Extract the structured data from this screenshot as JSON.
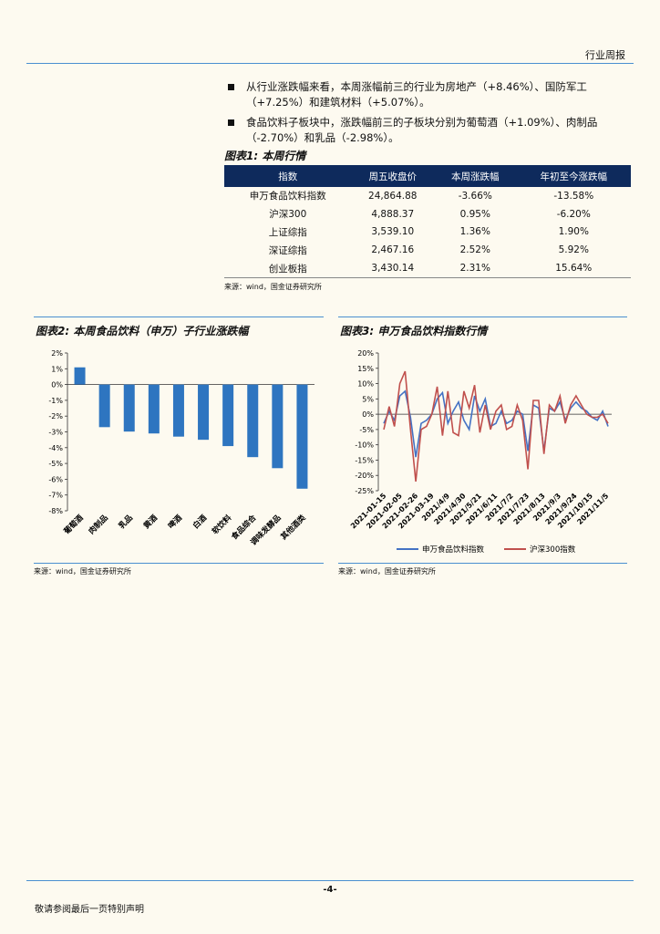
{
  "header": {
    "title": "行业周报"
  },
  "bullets": [
    "从行业涨跌幅来看，本周涨幅前三的行业为房地产（+8.46%）、国防军工（+7.25%）和建筑材料（+5.07%）。",
    "食品饮料子板块中，涨跌幅前三的子板块分别为葡萄酒（+1.09%）、肉制品（-2.70%）和乳品（-2.98%）。"
  ],
  "table": {
    "title": "图表1: 本周行情",
    "headers": [
      "指数",
      "周五收盘价",
      "本周涨跌幅",
      "年初至今涨跌幅"
    ],
    "rows": [
      [
        "申万食品饮料指数",
        "24,864.88",
        "-3.66%",
        "-13.58%"
      ],
      [
        "沪深300",
        "4,888.37",
        "0.95%",
        "-6.20%"
      ],
      [
        "上证综指",
        "3,539.10",
        "1.36%",
        "1.90%"
      ],
      [
        "深证综指",
        "2,467.16",
        "2.52%",
        "5.92%"
      ],
      [
        "创业板指",
        "3,430.14",
        "2.31%",
        "15.64%"
      ]
    ],
    "source": "来源：wind，国金证券研究所"
  },
  "chart_data": [
    {
      "type": "bar",
      "title": "图表2: 本周食品饮料（申万）子行业涨跌幅",
      "categories": [
        "葡萄酒",
        "肉制品",
        "乳品",
        "黄酒",
        "啤酒",
        "白酒",
        "软饮料",
        "食品综合",
        "调味发酵品",
        "其他酒类"
      ],
      "values": [
        1.09,
        -2.7,
        -2.98,
        -3.1,
        -3.3,
        -3.5,
        -3.9,
        -4.6,
        -5.3,
        -6.6
      ],
      "ylim": [
        -8,
        2
      ],
      "yticks": [
        "2%",
        "1%",
        "0%",
        "-1%",
        "-2%",
        "-3%",
        "-4%",
        "-5%",
        "-6%",
        "-7%",
        "-8%"
      ],
      "color": "#2e75c0",
      "source": "来源：wind，国金证券研究所"
    },
    {
      "type": "line",
      "title": "图表3: 申万食品饮料指数行情",
      "xticks": [
        "2021-01-15",
        "2021-02-05",
        "2021-02-26",
        "2021-03-19",
        "2021/4/9",
        "2021/4/30",
        "2021/5/21",
        "2021/6/11",
        "2021/7/2",
        "2021/7/23",
        "2021/8/13",
        "2021/9/3",
        "2021/9/24",
        "2021/10/15",
        "2021/11/5"
      ],
      "yticks": [
        "20%",
        "15%",
        "10%",
        "5%",
        "0%",
        "-5%",
        "-10%",
        "-15%",
        "-20%",
        "-25%"
      ],
      "ylim": [
        -25,
        20
      ],
      "series": [
        {
          "name": "申万食品饮料指数",
          "color": "#4472c4",
          "values": [
            -3,
            1,
            -2,
            6,
            7.5,
            -1,
            -14,
            -3,
            -2,
            0,
            5,
            7,
            -3,
            1,
            4,
            -2,
            -5,
            6,
            1,
            5,
            -4,
            -3,
            1,
            -3,
            -2,
            1,
            0,
            -12,
            3,
            2,
            -12,
            2,
            1,
            4,
            -2,
            2,
            4,
            2,
            1,
            -1,
            -2,
            1,
            -4
          ]
        },
        {
          "name": "沪深300指数",
          "color": "#c0504d",
          "values": [
            -5,
            2.5,
            -4,
            10,
            14,
            -5,
            -22,
            -5,
            -4,
            0,
            9,
            -7,
            7.5,
            -6,
            -7,
            7.5,
            2,
            9.5,
            -6,
            3,
            -5,
            1,
            3,
            -5,
            -4,
            3,
            -2,
            -18,
            4.5,
            4.5,
            -13,
            3,
            1,
            6,
            -3,
            3,
            6,
            3,
            0,
            -1,
            -1,
            0,
            -3
          ]
        }
      ],
      "source": "来源：wind，国金证券研究所"
    }
  ],
  "footer": {
    "page": "-4-",
    "disclaimer": "敬请参阅最后一页特别声明"
  }
}
